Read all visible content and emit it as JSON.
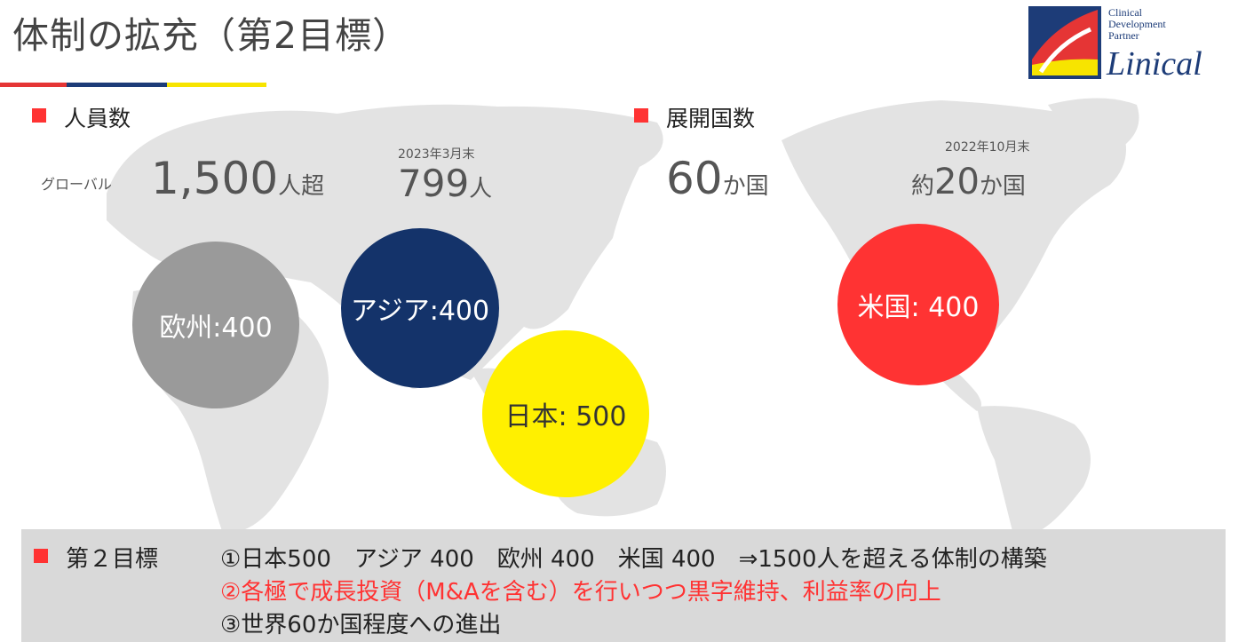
{
  "header": {
    "title": "体制の拡充（第2目標）",
    "bar_colors": [
      "#e53535",
      "#1d3c78",
      "#f7e400"
    ]
  },
  "logo": {
    "line1": "Clinical",
    "line2": "Development",
    "line3": "Partner",
    "wordmark": "Linical",
    "colors": {
      "navy": "#1d3c78",
      "red": "#e53535",
      "yellow": "#f7e400"
    }
  },
  "colors": {
    "accent_red": "#ff3333",
    "europe": "#9a9a9a",
    "asia": "#14336a",
    "japan": "#fff000",
    "usa": "#ff3333",
    "map_land": "#e3e3e3",
    "panel": "#d9d9d9"
  },
  "headcount": {
    "label": "人員数",
    "date": "2023年3月末",
    "global_label": "グローバル",
    "global_value": "1,500",
    "global_unit": "人超",
    "current_value": "799",
    "current_unit": "人"
  },
  "countries": {
    "label": "展開国数",
    "date": "2022年10月末",
    "target_value": "60",
    "target_unit": "か国",
    "current_prefix": "約",
    "current_value": "20",
    "current_unit": "か国"
  },
  "regions": [
    {
      "label": "欧州:400"
    },
    {
      "label": "アジア:400"
    },
    {
      "label": "日本: 500"
    },
    {
      "label": "米国: 400"
    }
  ],
  "goal": {
    "label": "第２目標",
    "line1": "①日本500　アジア 400　欧州 400　米国 400　⇒1500人を超える体制の構築",
    "line2": "②各極で成長投資（M&Aを含む）を行いつつ黒字維持、利益率の向上",
    "line3": "③世界60か国程度への進出"
  }
}
